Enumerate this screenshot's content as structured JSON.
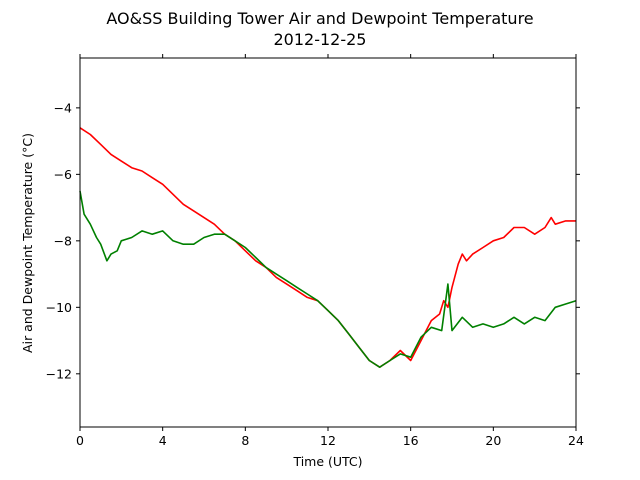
{
  "chart_data": {
    "type": "line",
    "title": "AO&SS Building Tower Air and Dewpoint Temperature",
    "subtitle": "2012-12-25",
    "xlabel": "Time (UTC)",
    "ylabel": "Air and Dewpoint Temperature (°C)",
    "xlim": [
      0,
      24
    ],
    "ylim": [
      -13.6,
      -2.5
    ],
    "xticks": [
      0,
      4,
      8,
      12,
      16,
      20,
      24
    ],
    "yticks": [
      -12,
      -10,
      -8,
      -6,
      -4
    ],
    "grid": false,
    "series": [
      {
        "color": "#ff0000",
        "x": [
          0,
          0.5,
          1,
          1.5,
          2,
          2.5,
          3,
          3.5,
          4,
          4.5,
          5,
          5.5,
          6,
          6.5,
          7,
          7.5,
          8,
          8.5,
          9,
          9.5,
          10,
          10.5,
          11,
          11.5,
          12,
          12.5,
          13,
          13.5,
          14,
          14.5,
          15,
          15.5,
          16,
          16.5,
          17,
          17.4,
          17.6,
          17.8,
          18,
          18.3,
          18.5,
          18.7,
          19,
          19.5,
          20,
          20.5,
          21,
          21.5,
          22,
          22.5,
          22.8,
          23,
          23.5,
          24
        ],
        "y": [
          -4.6,
          -4.8,
          -5.1,
          -5.4,
          -5.6,
          -5.8,
          -5.9,
          -6.1,
          -6.3,
          -6.6,
          -6.9,
          -7.1,
          -7.3,
          -7.5,
          -7.8,
          -8.0,
          -8.3,
          -8.6,
          -8.8,
          -9.1,
          -9.3,
          -9.5,
          -9.7,
          -9.8,
          -10.1,
          -10.4,
          -10.8,
          -11.2,
          -11.6,
          -11.8,
          -11.6,
          -11.3,
          -11.6,
          -11.0,
          -10.4,
          -10.2,
          -9.8,
          -10.0,
          -9.4,
          -8.7,
          -8.4,
          -8.6,
          -8.4,
          -8.2,
          -8.0,
          -7.9,
          -7.6,
          -7.6,
          -7.8,
          -7.6,
          -7.3,
          -7.5,
          -7.4,
          -7.4
        ]
      },
      {
        "color": "#008000",
        "x": [
          0,
          0.2,
          0.5,
          0.8,
          1,
          1.3,
          1.5,
          1.8,
          2,
          2.5,
          3,
          3.5,
          4,
          4.5,
          5,
          5.5,
          6,
          6.5,
          7,
          7.5,
          8,
          8.5,
          9,
          9.5,
          10,
          10.5,
          11,
          11.5,
          12,
          12.5,
          13,
          13.5,
          14,
          14.5,
          15,
          15.5,
          16,
          16.5,
          17,
          17.5,
          17.8,
          18,
          18.5,
          19,
          19.5,
          20,
          20.5,
          21,
          21.5,
          22,
          22.5,
          23,
          23.5,
          24
        ],
        "y": [
          -6.5,
          -7.2,
          -7.5,
          -7.9,
          -8.1,
          -8.6,
          -8.4,
          -8.3,
          -8.0,
          -7.9,
          -7.7,
          -7.8,
          -7.7,
          -8.0,
          -8.1,
          -8.1,
          -7.9,
          -7.8,
          -7.8,
          -8.0,
          -8.2,
          -8.5,
          -8.8,
          -9.0,
          -9.2,
          -9.4,
          -9.6,
          -9.8,
          -10.1,
          -10.4,
          -10.8,
          -11.2,
          -11.6,
          -11.8,
          -11.6,
          -11.4,
          -11.5,
          -10.9,
          -10.6,
          -10.7,
          -9.3,
          -10.7,
          -10.3,
          -10.6,
          -10.5,
          -10.6,
          -10.5,
          -10.3,
          -10.5,
          -10.3,
          -10.4,
          -10.0,
          -9.9,
          -9.8
        ]
      }
    ]
  }
}
